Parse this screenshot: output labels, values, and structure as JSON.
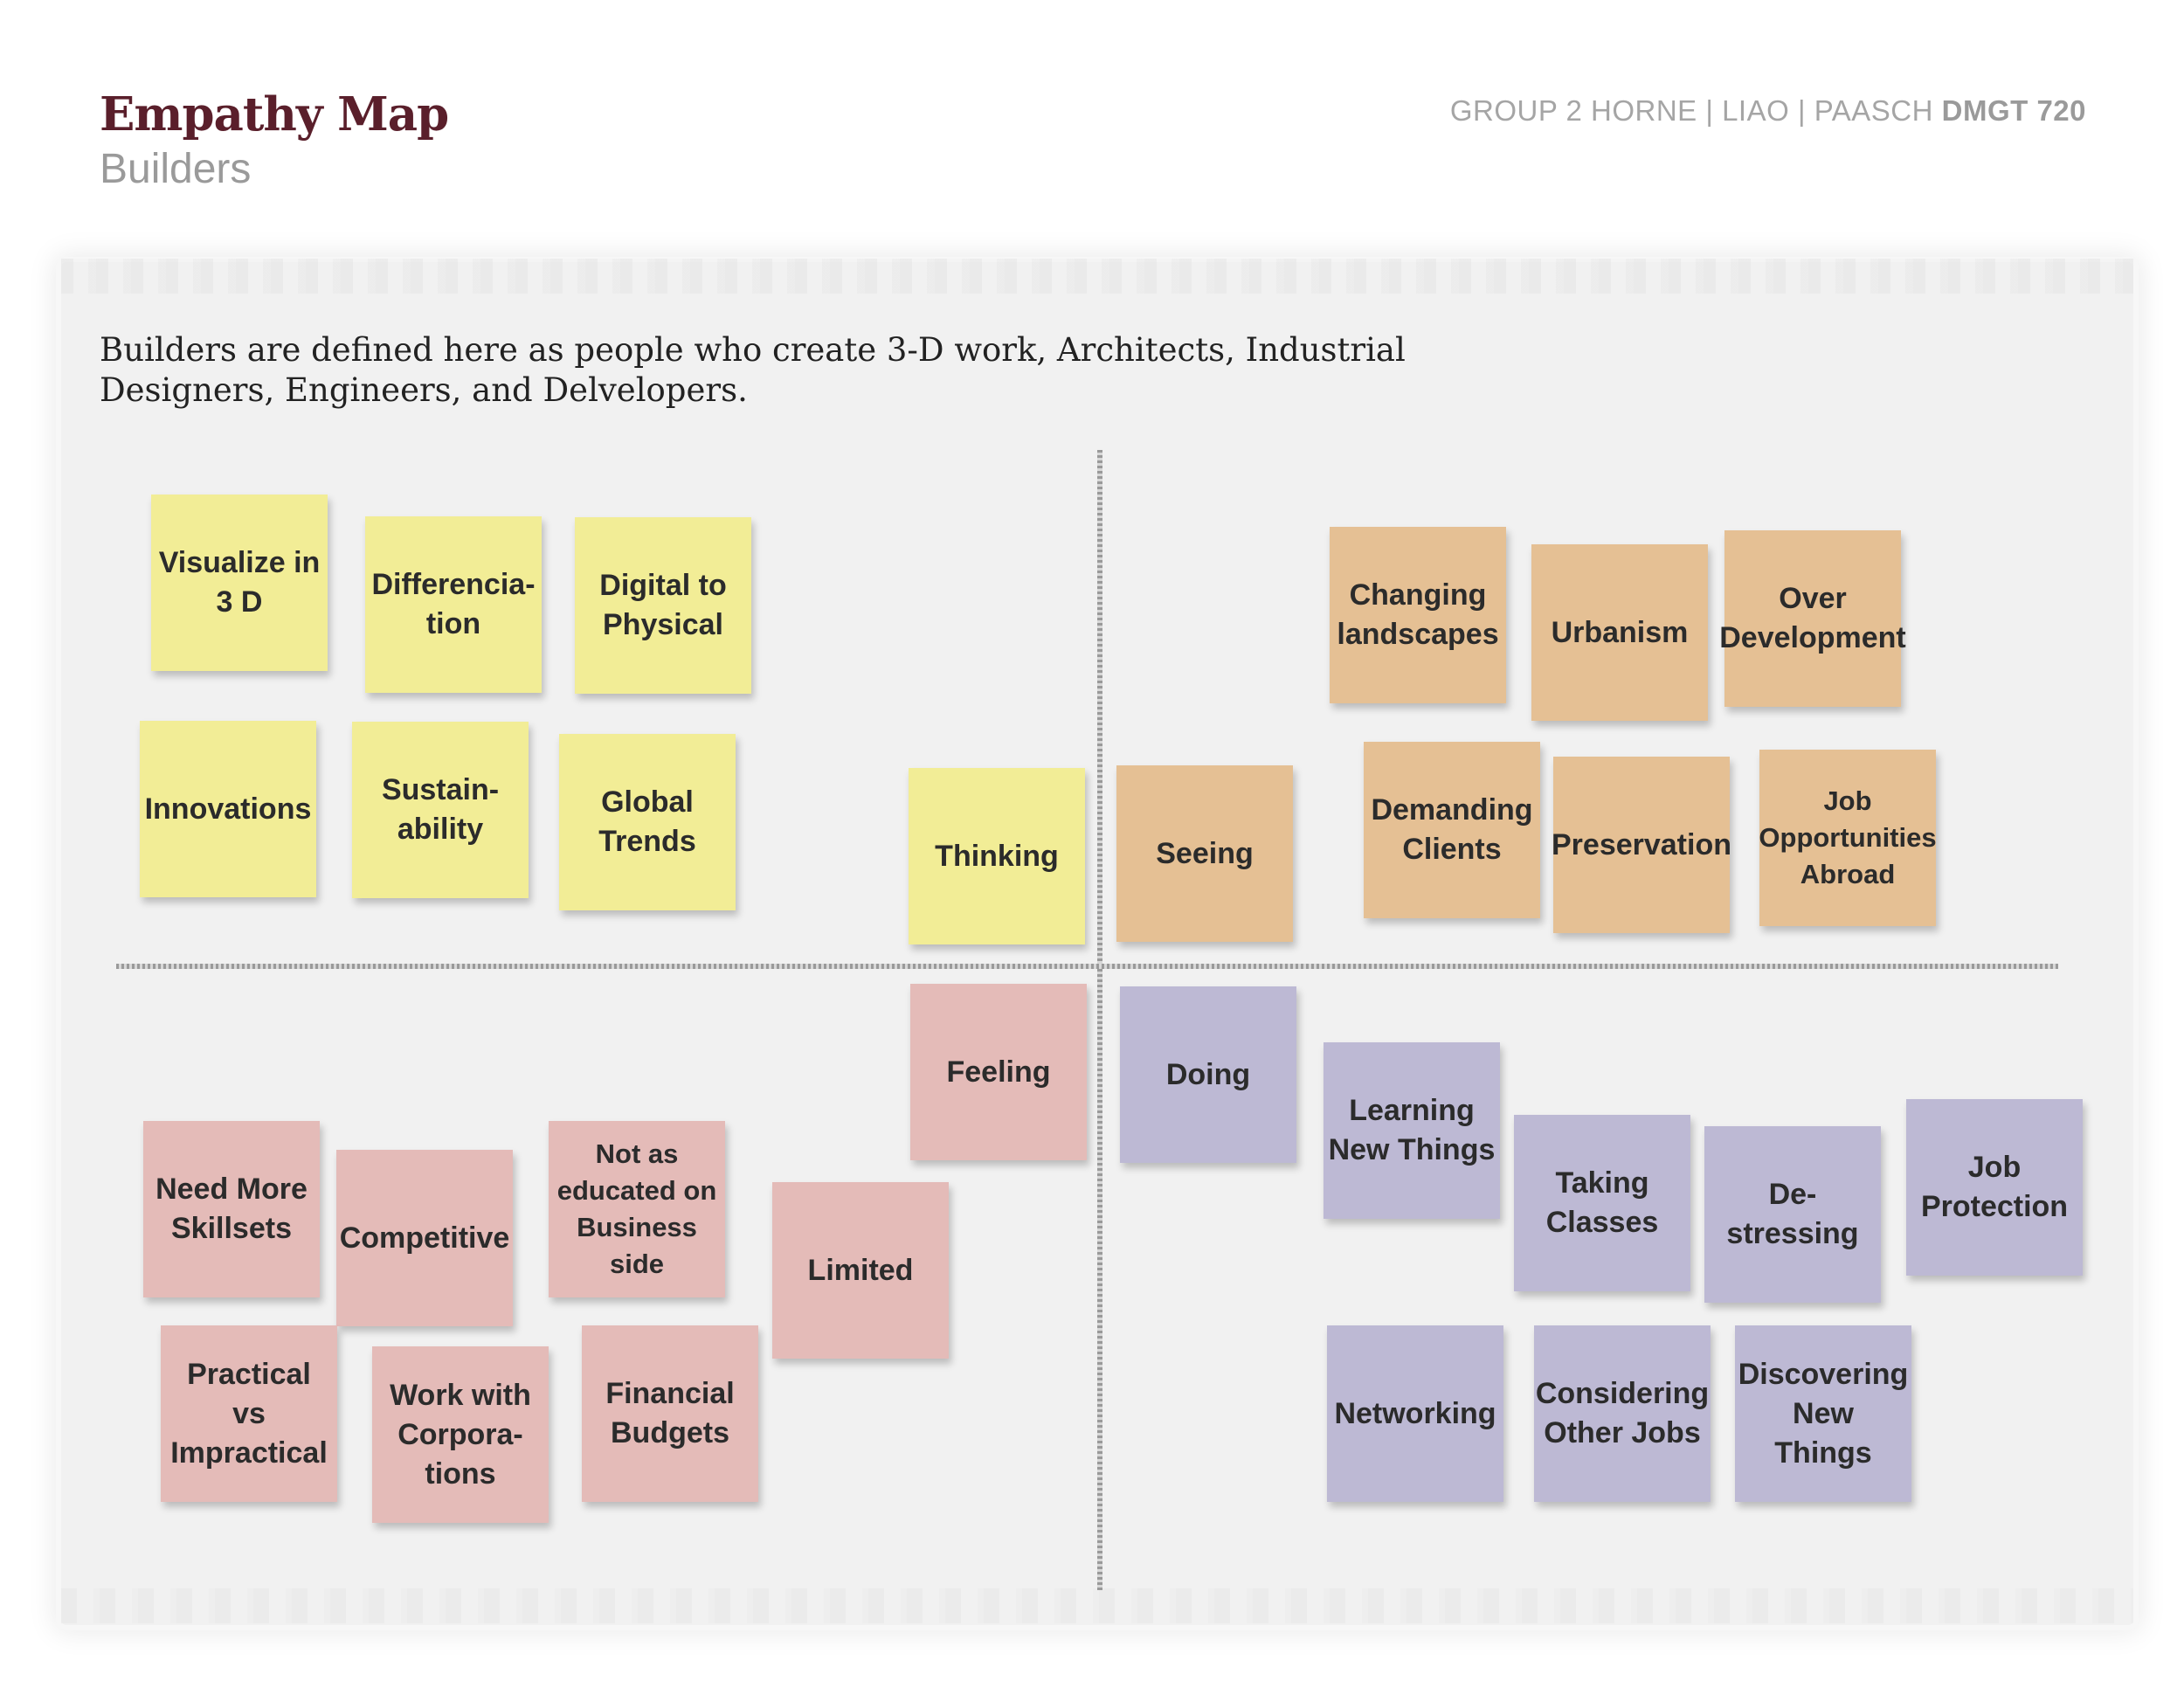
{
  "header": {
    "title": "Empathy Map",
    "subtitle": "Builders",
    "group": "GROUP 2 HORNE | LIAO | PAASCH",
    "course": "DMGT 720"
  },
  "description": "Builders are defined here as people who create 3-D work, Architects, Industrial Designers, Engineers, and Delvelopers.",
  "colors": {
    "thinking": "#f2ed96",
    "seeing": "#e5c094",
    "feeling": "#e4bbb8",
    "doing": "#bdb9d4",
    "title": "#5a1f2b"
  },
  "quadrants": {
    "thinking": {
      "label": "Thinking",
      "notes": [
        "Visualize in\n3 D",
        "Differencia-\ntion",
        "Digital to\nPhysical",
        "Innovations",
        "Sustain-\nability",
        "Global\nTrends"
      ]
    },
    "seeing": {
      "label": "Seeing",
      "notes": [
        "Changing\nlandscapes",
        "Urbanism",
        "Over\nDevelopment",
        "Demanding\nClients",
        "Preservation",
        "Job\nOpportunities\nAbroad"
      ]
    },
    "feeling": {
      "label": "Feeling",
      "notes": [
        "Need More\nSkillsets",
        "Competitive",
        "Not as\neducated on\nBusiness side",
        "Limited",
        "Practical\nvs\nImpractical",
        "Work with\nCorpora-\ntions",
        "Financial\nBudgets"
      ]
    },
    "doing": {
      "label": "Doing",
      "notes": [
        "Learning\nNew Things",
        "Taking\nClasses",
        "De-stressing",
        "Job\nProtection",
        "Networking",
        "Considering\nOther Jobs",
        "Discovering\nNew\nThings"
      ]
    }
  }
}
